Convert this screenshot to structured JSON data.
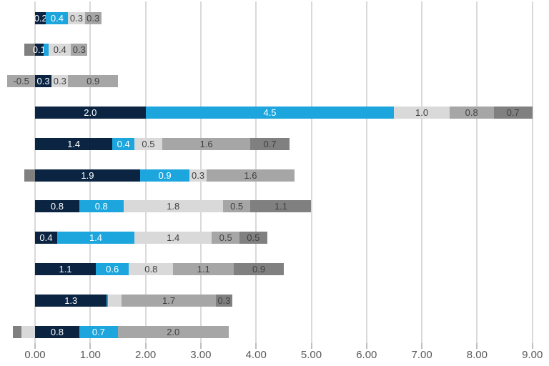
{
  "chart_data": {
    "type": "bar",
    "orientation": "horizontal",
    "stacked": true,
    "title": "",
    "legend": "none",
    "grid": "vertical",
    "x_axis": {
      "min": 0,
      "max": 9,
      "tick_step": 1,
      "ticks": [
        "0.00",
        "1.00",
        "2.00",
        "3.00",
        "4.00",
        "5.00",
        "6.00",
        "7.00",
        "8.00",
        "9.00"
      ]
    },
    "colors": {
      "navy": "#0A2442",
      "cyan": "#1CA6DD",
      "light_gray": "#D9D9D9",
      "medium_gray": "#A6A6A6",
      "dark_gray": "#808080"
    },
    "gridline_color": "#D9D9D9",
    "tick_color": "#BFBFBF",
    "axis_text_color": "#595959",
    "label_text_on_blue": "#FFFFFF",
    "label_text_on_gray": "#404040",
    "rows": [
      {
        "segments": [
          {
            "color": "navy",
            "value": 0.2,
            "label": "0.2"
          },
          {
            "color": "cyan",
            "value": 0.4,
            "label": "0.4"
          },
          {
            "color": "light_gray",
            "value": 0.3,
            "label": "0.3"
          },
          {
            "color": "medium_gray",
            "value": 0.3,
            "label": "0.3"
          }
        ]
      },
      {
        "segments": [
          {
            "color": "dark_gray",
            "value": -0.2,
            "label": ""
          },
          {
            "color": "navy",
            "value": 0.15,
            "label": "0.1"
          },
          {
            "color": "cyan",
            "value": 0.1,
            "label": ""
          },
          {
            "color": "light_gray",
            "value": 0.4,
            "label": "0.4"
          },
          {
            "color": "medium_gray",
            "value": 0.3,
            "label": "0.3"
          }
        ]
      },
      {
        "segments": [
          {
            "color": "medium_gray",
            "value": -0.5,
            "label": "-0.5"
          },
          {
            "color": "navy",
            "value": 0.3,
            "label": "0.3"
          },
          {
            "color": "light_gray",
            "value": 0.3,
            "label": "0.3"
          },
          {
            "color": "medium_gray",
            "value": 0.9,
            "label": "0.9"
          }
        ]
      },
      {
        "segments": [
          {
            "color": "navy",
            "value": 2.0,
            "label": "2.0"
          },
          {
            "color": "cyan",
            "value": 4.5,
            "label": "4.5"
          },
          {
            "color": "light_gray",
            "value": 1.0,
            "label": "1.0"
          },
          {
            "color": "medium_gray",
            "value": 0.8,
            "label": "0.8"
          },
          {
            "color": "dark_gray",
            "value": 0.7,
            "label": "0.7"
          }
        ]
      },
      {
        "segments": [
          {
            "color": "navy",
            "value": 1.4,
            "label": "1.4"
          },
          {
            "color": "cyan",
            "value": 0.4,
            "label": "0.4"
          },
          {
            "color": "light_gray",
            "value": 0.5,
            "label": "0.5"
          },
          {
            "color": "medium_gray",
            "value": 1.6,
            "label": "1.6"
          },
          {
            "color": "dark_gray",
            "value": 0.7,
            "label": "0.7"
          }
        ]
      },
      {
        "segments": [
          {
            "color": "dark_gray",
            "value": -0.2,
            "label": ""
          },
          {
            "color": "navy",
            "value": 1.9,
            "label": "1.9"
          },
          {
            "color": "cyan",
            "value": 0.9,
            "label": "0.9"
          },
          {
            "color": "light_gray",
            "value": 0.3,
            "label": "0.3"
          },
          {
            "color": "medium_gray",
            "value": 1.6,
            "label": "1.6"
          }
        ]
      },
      {
        "segments": [
          {
            "color": "navy",
            "value": 0.8,
            "label": "0.8"
          },
          {
            "color": "cyan",
            "value": 0.8,
            "label": "0.8"
          },
          {
            "color": "light_gray",
            "value": 1.8,
            "label": "1.8"
          },
          {
            "color": "medium_gray",
            "value": 0.5,
            "label": "0.5"
          },
          {
            "color": "dark_gray",
            "value": 1.1,
            "label": "1.1"
          }
        ]
      },
      {
        "segments": [
          {
            "color": "navy",
            "value": 0.4,
            "label": "0.4"
          },
          {
            "color": "cyan",
            "value": 1.4,
            "label": "1.4"
          },
          {
            "color": "light_gray",
            "value": 1.4,
            "label": "1.4"
          },
          {
            "color": "medium_gray",
            "value": 0.5,
            "label": "0.5"
          },
          {
            "color": "dark_gray",
            "value": 0.5,
            "label": "0.5"
          }
        ]
      },
      {
        "segments": [
          {
            "color": "navy",
            "value": 1.1,
            "label": "1.1"
          },
          {
            "color": "cyan",
            "value": 0.6,
            "label": "0.6"
          },
          {
            "color": "light_gray",
            "value": 0.8,
            "label": "0.8"
          },
          {
            "color": "medium_gray",
            "value": 1.1,
            "label": "1.1"
          },
          {
            "color": "dark_gray",
            "value": 0.9,
            "label": "0.9"
          }
        ]
      },
      {
        "segments": [
          {
            "color": "navy",
            "value": 1.3,
            "label": "1.3"
          },
          {
            "color": "cyan",
            "value": 0.02,
            "label": ""
          },
          {
            "color": "light_gray",
            "value": 0.25,
            "label": ""
          },
          {
            "color": "medium_gray",
            "value": 1.7,
            "label": "1.7"
          },
          {
            "color": "dark_gray",
            "value": 0.3,
            "label": "0.3"
          }
        ]
      },
      {
        "segments": [
          {
            "color": "dark_gray",
            "value": -0.15,
            "label": ""
          },
          {
            "color": "light_gray",
            "value": -0.25,
            "label": ""
          },
          {
            "color": "navy",
            "value": 0.8,
            "label": "0.8"
          },
          {
            "color": "cyan",
            "value": 0.7,
            "label": "0.7"
          },
          {
            "color": "medium_gray",
            "value": 2.0,
            "label": "2.0"
          }
        ]
      }
    ]
  }
}
